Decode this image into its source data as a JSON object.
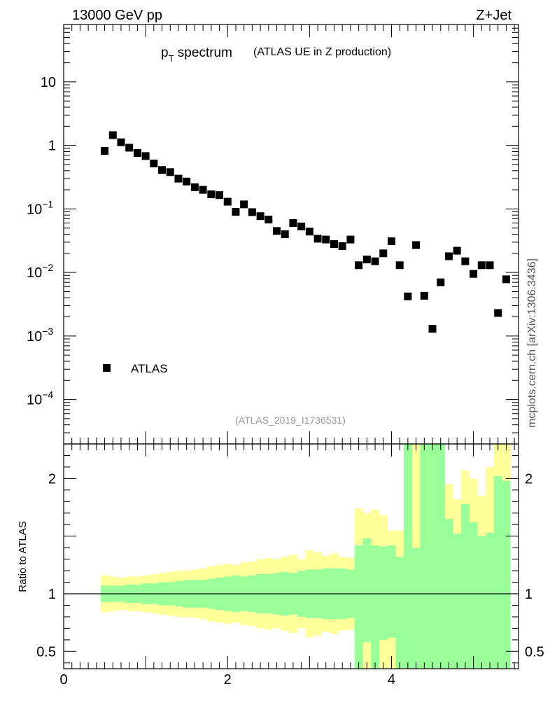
{
  "header": {
    "energy_label": "13000 GeV pp",
    "process_label": "Z+Jet",
    "side_label": "mcplots.cern.ch [arXiv:1306.3436]"
  },
  "main": {
    "title_p": "p",
    "title_sub": "T",
    "title_rest": " spectrum",
    "title_note": "(ATLAS UE in Z production)",
    "legend_label": "ATLAS",
    "analysis_label": "(ATLAS_2019_I1736531)",
    "y_ticks": [
      {
        "label": "10",
        "exp": "",
        "v": 10
      },
      {
        "label": "1",
        "exp": "",
        "v": 1
      },
      {
        "label": "10",
        "exp": "−1",
        "v": 0.1
      },
      {
        "label": "10",
        "exp": "−2",
        "v": 0.01
      },
      {
        "label": "10",
        "exp": "−3",
        "v": 0.001
      },
      {
        "label": "10",
        "exp": "−4",
        "v": 0.0001
      }
    ]
  },
  "ratio": {
    "ylabel": "Ratio to ATLAS",
    "y_ticks": [
      {
        "label": "2",
        "v": 2
      },
      {
        "label": "1",
        "v": 1
      },
      {
        "label": "0.5",
        "v": 0.5
      }
    ]
  },
  "colors": {
    "outer_band": "#ffff99",
    "inner_band": "#99ff99",
    "marker": "#000000"
  },
  "chart_data": {
    "type": "scatter",
    "title": "pT spectrum (ATLAS UE in Z production)",
    "x_ticks": [
      0,
      2,
      4
    ],
    "xlim": [
      0,
      5.55
    ],
    "ylim": [
      2e-05,
      80
    ],
    "yscale": "log",
    "ratio_ylim": [
      0.35,
      2.3
    ],
    "bin_width": 0.1,
    "series": [
      {
        "name": "ATLAS",
        "x": [
          0.5,
          0.6,
          0.7,
          0.8,
          0.9,
          1.0,
          1.1,
          1.2,
          1.3,
          1.4,
          1.5,
          1.6,
          1.7,
          1.8,
          1.9,
          2.0,
          2.1,
          2.2,
          2.3,
          2.4,
          2.5,
          2.6,
          2.7,
          2.8,
          2.9,
          3.0,
          3.1,
          3.2,
          3.3,
          3.4,
          3.5,
          3.6,
          3.7,
          3.8,
          3.9,
          4.0,
          4.1,
          4.2,
          4.3,
          4.4,
          4.5,
          4.6,
          4.7,
          4.8,
          4.9,
          5.0,
          5.1,
          5.2,
          5.3,
          5.4
        ],
        "y": [
          0.82,
          1.45,
          1.12,
          0.92,
          0.76,
          0.68,
          0.52,
          0.41,
          0.38,
          0.3,
          0.27,
          0.22,
          0.2,
          0.17,
          0.165,
          0.13,
          0.09,
          0.118,
          0.089,
          0.077,
          0.068,
          0.045,
          0.04,
          0.06,
          0.053,
          0.044,
          0.034,
          0.033,
          0.028,
          0.026,
          0.033,
          0.013,
          0.016,
          0.015,
          0.02,
          0.031,
          0.013,
          0.0042,
          0.027,
          0.0043,
          0.0013,
          0.007,
          0.018,
          0.022,
          0.015,
          0.0095,
          0.013,
          0.013,
          0.0023,
          0.0078
        ]
      }
    ],
    "ratio_bands": [
      {
        "name": "inner",
        "up": [
          1.07,
          1.07,
          1.07,
          1.08,
          1.08,
          1.09,
          1.09,
          1.1,
          1.1,
          1.11,
          1.12,
          1.12,
          1.12,
          1.13,
          1.14,
          1.15,
          1.16,
          1.15,
          1.16,
          1.17,
          1.17,
          1.18,
          1.19,
          1.18,
          1.2,
          1.21,
          1.21,
          1.22,
          1.22,
          1.22,
          1.21,
          1.42,
          1.48,
          1.42,
          1.41,
          1.42,
          1.32,
          2.3,
          1.4,
          2.3,
          2.3,
          2.3,
          1.65,
          1.52,
          1.78,
          1.62,
          1.5,
          1.53,
          2.02,
          1.98
        ],
        "down": [
          0.93,
          0.93,
          0.93,
          0.92,
          0.92,
          0.91,
          0.91,
          0.9,
          0.9,
          0.89,
          0.88,
          0.88,
          0.88,
          0.87,
          0.86,
          0.85,
          0.84,
          0.85,
          0.84,
          0.83,
          0.83,
          0.82,
          0.81,
          0.82,
          0.8,
          0.79,
          0.79,
          0.78,
          0.78,
          0.78,
          0.79,
          0.35,
          0.58,
          0.35,
          0.6,
          0.62,
          0.35,
          0.35,
          0.35,
          0.35,
          0.35,
          0.35,
          0.35,
          0.35,
          0.35,
          0.35,
          0.35,
          0.35,
          0.35,
          0.35
        ]
      },
      {
        "name": "outer",
        "up": [
          1.16,
          1.15,
          1.14,
          1.15,
          1.15,
          1.16,
          1.17,
          1.18,
          1.19,
          1.2,
          1.2,
          1.21,
          1.22,
          1.24,
          1.25,
          1.26,
          1.25,
          1.27,
          1.28,
          1.3,
          1.31,
          1.3,
          1.32,
          1.34,
          1.3,
          1.38,
          1.36,
          1.33,
          1.35,
          1.32,
          1.31,
          1.74,
          1.7,
          1.73,
          1.68,
          1.55,
          1.55,
          2.3,
          2.3,
          2.3,
          2.3,
          2.3,
          1.95,
          1.82,
          2.07,
          2.0,
          1.85,
          2.1,
          2.3,
          2.3
        ],
        "down": [
          0.84,
          0.85,
          0.86,
          0.85,
          0.85,
          0.84,
          0.83,
          0.82,
          0.81,
          0.8,
          0.8,
          0.79,
          0.78,
          0.76,
          0.75,
          0.74,
          0.75,
          0.73,
          0.72,
          0.7,
          0.69,
          0.7,
          0.68,
          0.66,
          0.7,
          0.62,
          0.64,
          0.67,
          0.65,
          0.68,
          0.69,
          0.35,
          0.35,
          0.35,
          0.35,
          0.35,
          0.35,
          0.35,
          0.35,
          0.35,
          0.35,
          0.35,
          0.35,
          0.35,
          0.35,
          0.35,
          0.35,
          0.35,
          0.35,
          0.35
        ]
      }
    ]
  }
}
